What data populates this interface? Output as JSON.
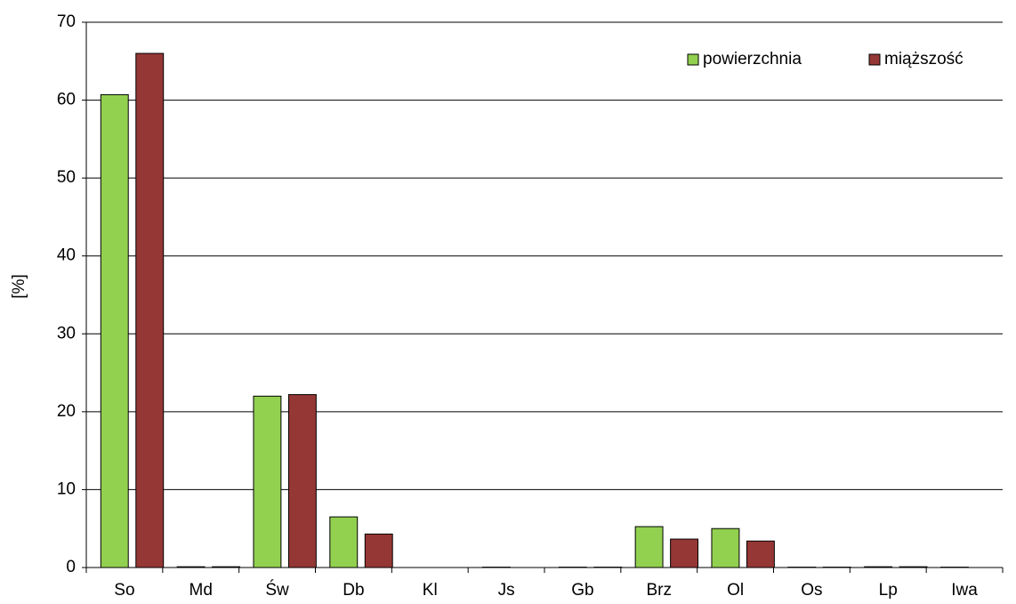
{
  "chart_data": {
    "type": "bar",
    "y_label": "[%]",
    "categories": [
      "So",
      "Md",
      "Św",
      "Db",
      "Kl",
      "Js",
      "Gb",
      "Brz",
      "Ol",
      "Os",
      "Lp",
      "Iwa"
    ],
    "series": [
      {
        "name": "powierzchnia",
        "color": "#92d050",
        "values": [
          60.7,
          0.1,
          22.0,
          6.5,
          0,
          0.05,
          0.05,
          5.25,
          5.0,
          0.05,
          0.1,
          0.05
        ]
      },
      {
        "name": "miąższość",
        "color": "#953735",
        "values": [
          66.0,
          0.1,
          22.2,
          4.3,
          0,
          0,
          0.05,
          3.65,
          3.4,
          0.05,
          0.1,
          0
        ]
      }
    ],
    "ylim": [
      0,
      70
    ],
    "yticks": [
      0,
      10,
      20,
      30,
      40,
      50,
      60,
      70
    ],
    "grid": true,
    "legend": "top-right"
  }
}
